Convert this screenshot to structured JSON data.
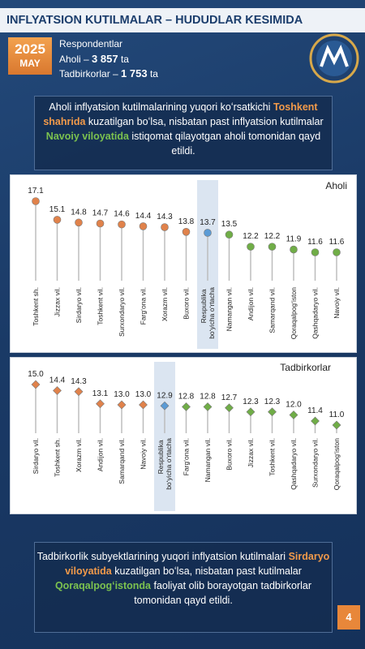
{
  "header": {
    "title": "INFLYATSION KUTILMALAR – HUDUDLAR KESIMIDA",
    "year": "2025",
    "month": "MAY",
    "respondents": "Respondentlar",
    "aholi": [
      "Aholi –",
      "3 857",
      "ta"
    ],
    "tadbirkorlar": [
      "Tadbirkorlar –",
      "1 753",
      "ta"
    ]
  },
  "intro": [
    "Aholi inflyatsion kutilmalarining yuqori koʻrsatkichi ",
    "Toshkent shahrida",
    " kuzatilgan boʻlsa, nisbatan past inflyatsion kutilmalar ",
    "Navoiy viloyatida",
    " istiqomat qilayotgan aholi tomonidan qayd etildi."
  ],
  "outro": [
    "Tadbirkorlik subyektlarining yuqori inflyatsion kutilmalari ",
    "Sirdaryo viloyatida",
    " kuzatilgan boʻlsa, nisbatan past kutilmalar ",
    "Qoraqalpogʻistonda",
    " faoliyat olib borayotgan tadbirkorlar tomonidan qayd etildi."
  ],
  "page_number": "4",
  "chart_data": [
    {
      "type": "lollipop",
      "label": "Aholi",
      "marker": "circle",
      "categories": [
        "Toshkent sh.",
        "Jizzax vil.",
        "Sirdaryo vil.",
        "Toshkent vil.",
        "Surxondaryo vil.",
        "Fargʻona vil.",
        "Xorazm vil.",
        "Buxoro vil.",
        "Respublika boʻyicha oʻrtacha",
        "Namangan vil.",
        "Andijon vil.",
        "Samarqand vil.",
        "Qoraqalpogʻiston",
        "Qashqadaryo vil.",
        "Navoiy vil."
      ],
      "values": [
        17.1,
        15.1,
        14.8,
        14.7,
        14.6,
        14.4,
        14.3,
        13.8,
        13.7,
        13.5,
        12.2,
        12.2,
        11.9,
        11.6,
        11.6
      ],
      "colors": [
        "#e0824b",
        "#e0824b",
        "#e0824b",
        "#e0824b",
        "#e0824b",
        "#e0824b",
        "#e0824b",
        "#e0824b",
        "#5b9bd5",
        "#70ad47",
        "#70ad47",
        "#70ad47",
        "#70ad47",
        "#70ad47",
        "#70ad47"
      ]
    },
    {
      "type": "lollipop",
      "label": "Tadbirkorlar",
      "marker": "diamond",
      "categories": [
        "Sirdaryo vil.",
        "Toshkent sh.",
        "Xorazm vil.",
        "Andijon vil.",
        "Samarqand vil.",
        "Navoiy vil.",
        "Respublika boʻyicha oʻrtacha",
        "Fargʻona vil.",
        "Namangan vil.",
        "Buxoro vil.",
        "Jizzax vil.",
        "Toshkent vil.",
        "Qashqadaryo vil.",
        "Surxondaryo vil.",
        "Qoraqalpogʻiston"
      ],
      "values": [
        15.0,
        14.4,
        14.3,
        13.1,
        13.0,
        13.0,
        12.9,
        12.8,
        12.8,
        12.7,
        12.3,
        12.3,
        12.0,
        11.4,
        11.0
      ],
      "value_labels": [
        "15.0",
        "14.4",
        "14.3",
        "13.1",
        "13.0",
        "13.0",
        "12.9",
        "12.8",
        "12.8",
        "12.7",
        "12.3",
        "12.3",
        "12.0",
        "11.4",
        "11.0"
      ],
      "colors": [
        "#e0824b",
        "#e0824b",
        "#e0824b",
        "#e0824b",
        "#e0824b",
        "#e0824b",
        "#5b9bd5",
        "#70ad47",
        "#70ad47",
        "#70ad47",
        "#70ad47",
        "#70ad47",
        "#70ad47",
        "#70ad47",
        "#70ad47"
      ]
    }
  ]
}
